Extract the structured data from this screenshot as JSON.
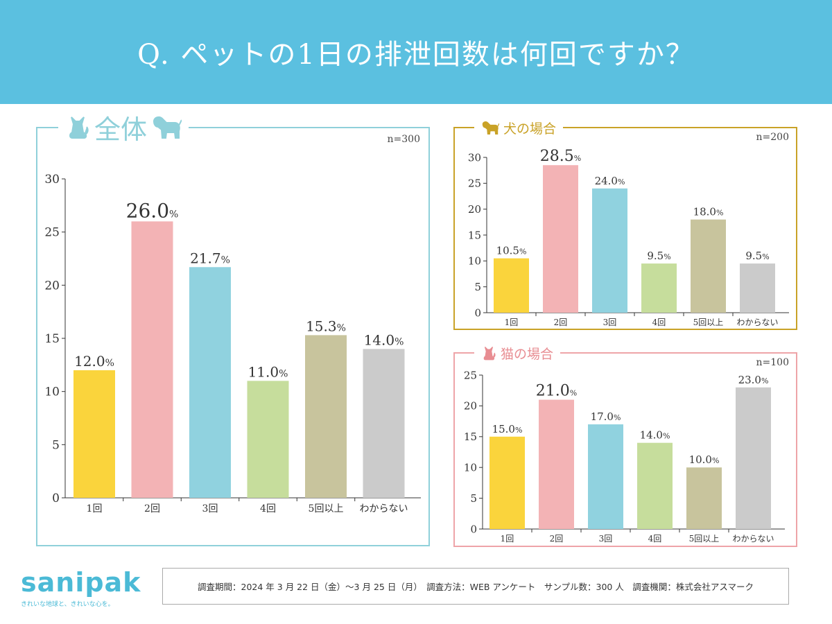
{
  "header": {
    "title": "Q. ペットの1日の排泄回数は何回ですか？"
  },
  "colors": {
    "header_bg": "#5bc0e0",
    "panel_all": "#8fd0da",
    "panel_dog": "#c9a227",
    "panel_cat": "#eea4a8",
    "bars": [
      "#fad43c",
      "#f3b3b5",
      "#90d2df",
      "#c6dd9c",
      "#c8c49d",
      "#cbcbcb"
    ]
  },
  "panels": {
    "all": {
      "title": "全体",
      "n": "n=300"
    },
    "dog": {
      "title": "犬の場合",
      "n": "n=200"
    },
    "cat": {
      "title": "猫の場合",
      "n": "n=100"
    }
  },
  "chart_data": [
    {
      "type": "bar",
      "title": "全体",
      "n": "n=300",
      "categories": [
        "1回",
        "2回",
        "3回",
        "4回",
        "5回以上",
        "わからない"
      ],
      "values": [
        12.0,
        26.0,
        21.7,
        11.0,
        15.3,
        14.0
      ],
      "labels": [
        "12.0",
        "26.0",
        "21.7",
        "11.0",
        "15.3",
        "14.0"
      ],
      "unit": "%",
      "highlight": 1,
      "ylim": [
        0,
        30
      ],
      "yticks": [
        0,
        5,
        10,
        15,
        20,
        25,
        30
      ]
    },
    {
      "type": "bar",
      "title": "犬の場合",
      "n": "n=200",
      "categories": [
        "1回",
        "2回",
        "3回",
        "4回",
        "5回以上",
        "わからない"
      ],
      "values": [
        10.5,
        28.5,
        24.0,
        9.5,
        18.0,
        9.5
      ],
      "labels": [
        "10.5",
        "28.5",
        "24.0",
        "9.5",
        "18.0",
        "9.5"
      ],
      "unit": "%",
      "highlight": 1,
      "ylim": [
        0,
        30
      ],
      "yticks": [
        0,
        5,
        10,
        15,
        20,
        25,
        30
      ]
    },
    {
      "type": "bar",
      "title": "猫の場合",
      "n": "n=100",
      "categories": [
        "1回",
        "2回",
        "3回",
        "4回",
        "5回以上",
        "わからない"
      ],
      "values": [
        15.0,
        21.0,
        17.0,
        14.0,
        10.0,
        23.0
      ],
      "labels": [
        "15.0",
        "21.0",
        "17.0",
        "14.0",
        "10.0",
        "23.0"
      ],
      "unit": "%",
      "highlight": 1,
      "ylim": [
        0,
        25
      ],
      "yticks": [
        0,
        5,
        10,
        15,
        20,
        25
      ]
    }
  ],
  "logo": {
    "name": "sanipak",
    "tagline": "きれいな地球と、きれいな心を。"
  },
  "footer": {
    "text": "調査期間：2024 年 3 月 22 日（金）～3 月 25 日（月）　調査方法：WEB アンケート　サンプル数：300 人　調査機関：株式会社アスマーク"
  }
}
